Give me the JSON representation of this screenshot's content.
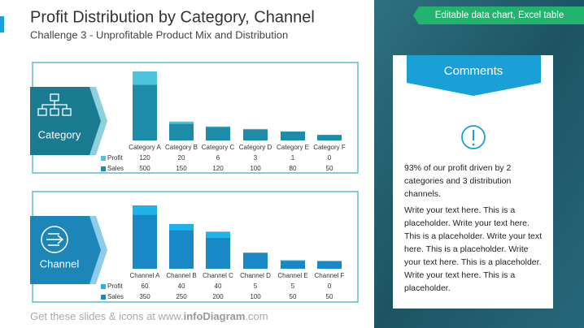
{
  "slide": {
    "title": "Profit Distribution by Category, Channel",
    "subtitle": "Challenge 3 - Unprofitable Product Mix and Distribution",
    "banner": "Editable data chart, Excel table",
    "comments_title": "Comments",
    "comments": [
      "93% of our profit driven by 2 categories and 3 distribution channels.",
      "Write your text here. This is a placeholder. Write your text here. This is a placeholder.  Write your text here. This is a placeholder. Write your text here. This is a placeholder.  Write your text here. This is a placeholder."
    ],
    "footer": [
      "Get these slides & icons at www.",
      "infoDiagram",
      ".com"
    ]
  },
  "chart_data": [
    {
      "type": "bar",
      "stacked": true,
      "title": "Category",
      "categories": [
        "Category A",
        "Category B",
        "Category C",
        "Category D",
        "Category E",
        "Category F"
      ],
      "series": [
        {
          "name": "Profit",
          "color": "#4ec3dc",
          "values": [
            120,
            20,
            6,
            3,
            1,
            0
          ]
        },
        {
          "name": "Sales",
          "color": "#1d8ca8",
          "values": [
            500,
            150,
            120,
            100,
            80,
            50
          ]
        }
      ]
    },
    {
      "type": "bar",
      "stacked": true,
      "title": "Channel",
      "categories": [
        "Channel A",
        "Channel B",
        "Channel C",
        "Channel D",
        "Channel E",
        "Channel F"
      ],
      "series": [
        {
          "name": "Profit",
          "color": "#1fb3ec",
          "values": [
            60,
            40,
            40,
            5,
            5,
            0
          ]
        },
        {
          "name": "Sales",
          "color": "#1888c6",
          "values": [
            350,
            250,
            200,
            100,
            50,
            50
          ]
        }
      ]
    }
  ]
}
